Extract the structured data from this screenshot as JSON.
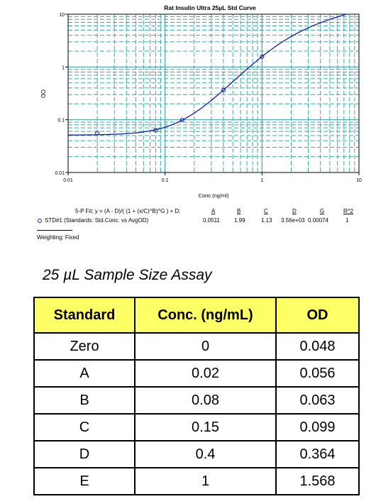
{
  "chart_data": {
    "type": "scatter",
    "title": "Rat Insulin Ultra 25µL Std Curve",
    "xlabel": "Conc (ng/ml)",
    "ylabel": "OD",
    "xscale": "log",
    "yscale": "log",
    "xlim": [
      0.01,
      10
    ],
    "ylim": [
      0.01,
      10
    ],
    "x_ticks": [
      "0.01",
      "0.1",
      "1",
      "10"
    ],
    "y_ticks": [
      "0.01",
      "0.1",
      "1",
      "10"
    ],
    "grid": true,
    "fit": {
      "model": "5-P",
      "A": 0.0511,
      "B": 1.99,
      "C": 1.13,
      "D": 3560,
      "G": 0.00074
    },
    "series": [
      {
        "name": "STD#1 (Standards: Std.Conc. vs AvgOD)",
        "x": [
          0.02,
          0.08,
          0.15,
          0.4,
          1
        ],
        "y": [
          0.056,
          0.063,
          0.099,
          0.364,
          1.568
        ]
      }
    ]
  },
  "fit_info": {
    "equation": "5-P Fit: y = (A - D)/( (1 + (x/C)^B)^G ) + D:",
    "headers": [
      "A",
      "B",
      "C",
      "D",
      "G",
      "R^2"
    ],
    "legend_label": "STD#1 (Standards: Std.Conc. vs AvgOD)",
    "values": [
      "0.0511",
      "1.99",
      "1.13",
      "3.56e+03",
      "0.00074",
      "1"
    ],
    "weighting": "Weighting: Fixed"
  },
  "section_title": "25 µL Sample Size Assay",
  "table": {
    "headers": [
      "Standard",
      "Conc. (ng/mL)",
      "OD"
    ],
    "rows": [
      [
        "Zero",
        "0",
        "0.048"
      ],
      [
        "A",
        "0.02",
        "0.056"
      ],
      [
        "B",
        "0.08",
        "0.063"
      ],
      [
        "C",
        "0.15",
        "0.099"
      ],
      [
        "D",
        "0.4",
        "0.364"
      ],
      [
        "E",
        "1",
        "1.568"
      ]
    ]
  },
  "colors": {
    "grid": "#3aa8a8",
    "curve": "#1a1aa8",
    "header_bg": "#ffff66"
  }
}
